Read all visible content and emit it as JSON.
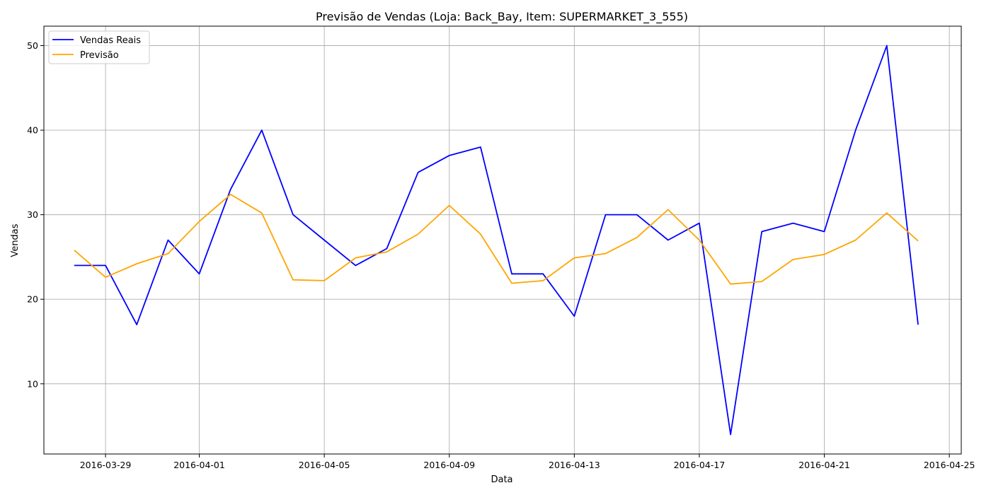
{
  "chart_data": {
    "type": "line",
    "title": "Previsão de Vendas (Loja: Back_Bay, Item: SUPERMARKET_3_555)",
    "xlabel": "Data",
    "ylabel": "Vendas",
    "x": [
      "2016-03-28",
      "2016-03-29",
      "2016-03-30",
      "2016-03-31",
      "2016-04-01",
      "2016-04-02",
      "2016-04-03",
      "2016-04-04",
      "2016-04-05",
      "2016-04-06",
      "2016-04-07",
      "2016-04-08",
      "2016-04-09",
      "2016-04-10",
      "2016-04-11",
      "2016-04-12",
      "2016-04-13",
      "2016-04-14",
      "2016-04-15",
      "2016-04-16",
      "2016-04-17",
      "2016-04-18",
      "2016-04-19",
      "2016-04-20",
      "2016-04-21",
      "2016-04-22",
      "2016-04-23",
      "2016-04-24"
    ],
    "series": [
      {
        "name": "Vendas Reais",
        "color": "#0000ff",
        "values": [
          24,
          24,
          17,
          27,
          23,
          33,
          40,
          30,
          27,
          24,
          26,
          35,
          37,
          38,
          23,
          23,
          18,
          30,
          30,
          27,
          29,
          4,
          28,
          29,
          28,
          40,
          50,
          17
        ]
      },
      {
        "name": "Previsão",
        "color": "#ffa500",
        "values": [
          25.8,
          22.6,
          24.2,
          25.4,
          29.2,
          32.4,
          30.2,
          22.3,
          22.2,
          24.9,
          25.6,
          27.7,
          31.1,
          27.7,
          21.9,
          22.2,
          24.9,
          25.4,
          27.3,
          30.6,
          27.0,
          21.8,
          22.1,
          24.7,
          25.3,
          27.0,
          30.2,
          26.9
        ]
      }
    ],
    "xticks": [
      "2016-03-29",
      "2016-04-01",
      "2016-04-05",
      "2016-04-09",
      "2016-04-13",
      "2016-04-17",
      "2016-04-21",
      "2016-04-25"
    ],
    "xlim": [
      "2016-03-27T00:40",
      "2016-04-25T09:10"
    ],
    "yticks": [
      10,
      20,
      30,
      40,
      50
    ],
    "ylim": [
      1.7,
      52.3
    ],
    "grid": true,
    "legend_position": "upper-left"
  }
}
